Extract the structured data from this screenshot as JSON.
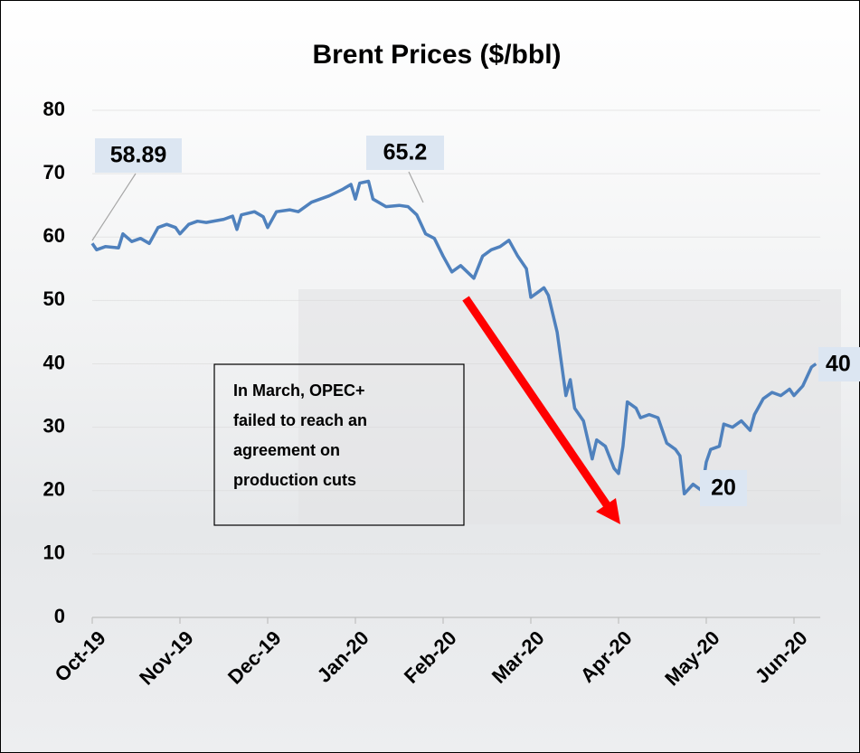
{
  "chart_data": {
    "type": "line",
    "title": "Brent Prices ($/bbl)",
    "x": [
      0,
      0.05,
      0.15,
      0.3,
      0.35,
      0.45,
      0.55,
      0.65,
      0.75,
      0.85,
      0.95,
      1.0,
      1.1,
      1.2,
      1.3,
      1.5,
      1.6,
      1.65,
      1.7,
      1.85,
      1.95,
      2.0,
      2.1,
      2.25,
      2.35,
      2.5,
      2.6,
      2.7,
      2.85,
      2.95,
      3.0,
      3.05,
      3.15,
      3.2,
      3.35,
      3.5,
      3.6,
      3.7,
      3.75,
      3.8,
      3.9,
      4.0,
      4.1,
      4.2,
      4.35,
      4.45,
      4.55,
      4.65,
      4.75,
      4.85,
      4.95,
      5.0,
      5.1,
      5.15,
      5.2,
      5.3,
      5.4,
      5.45,
      5.5,
      5.6,
      5.7,
      5.75,
      5.85,
      5.95,
      6.0,
      6.05,
      6.1,
      6.2,
      6.25,
      6.35,
      6.45,
      6.55,
      6.65,
      6.7,
      6.75,
      6.85,
      6.95,
      7.0,
      7.05,
      7.15,
      7.2,
      7.3,
      7.4,
      7.5,
      7.55,
      7.65,
      7.75,
      7.85,
      7.95,
      8.0,
      8.1,
      8.2,
      8.25
    ],
    "series": [
      {
        "color": "#4f81bd",
        "values": [
          59,
          58,
          58.5,
          58.3,
          60.5,
          59.3,
          59.8,
          59,
          61.5,
          62,
          61.5,
          60.5,
          62,
          62.5,
          62.3,
          62.8,
          63.3,
          61.2,
          63.5,
          64,
          63.2,
          61.5,
          64,
          64.3,
          64,
          65.5,
          66,
          66.5,
          67.5,
          68.3,
          66,
          68.5,
          68.8,
          66,
          64.8,
          65,
          64.8,
          63.5,
          62,
          60.5,
          59.8,
          57,
          54.5,
          55.5,
          53.5,
          57,
          58,
          58.5,
          59.5,
          57,
          55,
          50.5,
          51.5,
          52,
          50.8,
          45,
          35,
          37.5,
          33,
          31,
          25,
          28,
          27,
          23.5,
          22.7,
          27,
          34,
          33,
          31.5,
          32,
          31.5,
          27.5,
          26.5,
          25.5,
          19.5,
          21,
          20,
          24.5,
          26.5,
          27,
          30.5,
          30,
          31,
          29.5,
          32,
          34.5,
          35.5,
          35,
          36,
          35,
          36.5,
          39.5,
          40
        ]
      }
    ],
    "xlim": [
      0,
      8.3
    ],
    "xticks": [
      {
        "value": 0,
        "label": "Oct-19"
      },
      {
        "value": 1,
        "label": "Nov-19"
      },
      {
        "value": 2,
        "label": "Dec-19"
      },
      {
        "value": 3,
        "label": "Jan-20"
      },
      {
        "value": 4,
        "label": "Feb-20"
      },
      {
        "value": 5,
        "label": "Mar-20"
      },
      {
        "value": 6,
        "label": "Apr-20"
      },
      {
        "value": 7,
        "label": "May-20"
      },
      {
        "value": 8,
        "label": "Jun-20"
      }
    ],
    "ylim": [
      0,
      80
    ],
    "yticks": [
      0,
      10,
      20,
      30,
      40,
      50,
      60,
      70,
      80
    ],
    "grid": true,
    "annotations": [
      "58.89",
      "65.2",
      "20",
      "40"
    ],
    "note": [
      "In March, OPEC+",
      "failed to reach an",
      "agreement on",
      "production cuts"
    ]
  }
}
